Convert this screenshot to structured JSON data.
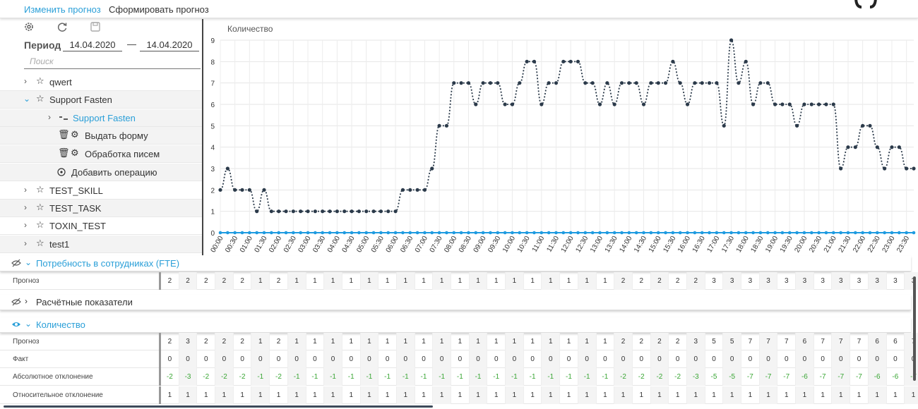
{
  "top_tabs": {
    "edit": "Изменить прогноз",
    "build": "Сформировать прогноз"
  },
  "left_panel": {
    "period_label": "Период",
    "date_from": "14.04.2020",
    "date_dash": "—",
    "date_to": "14.04.2020",
    "search_placeholder": "Поиск",
    "tree": [
      {
        "label": "qwert",
        "level": 0,
        "expanded": false
      },
      {
        "label": "Support Fasten",
        "level": 0,
        "expanded": true
      },
      {
        "label": "Support Fasten",
        "level": 1,
        "expanded": false
      },
      {
        "label": "Выдать форму",
        "level": 2
      },
      {
        "label": "Обработка писем",
        "level": 2
      },
      {
        "label": "Добавить операцию",
        "level": 2
      },
      {
        "label": "TEST_SKILL",
        "level": 0,
        "expanded": false
      },
      {
        "label": "TEST_TASK",
        "level": 0,
        "expanded": false
      },
      {
        "label": "TOXIN_TEST",
        "level": 0,
        "expanded": false
      },
      {
        "label": "test1",
        "level": 0,
        "expanded": false
      }
    ]
  },
  "chart_data": {
    "type": "line",
    "ylabel": "Количество",
    "ylim": [
      0,
      9
    ],
    "yticks": [
      "0",
      "1",
      "2",
      "3",
      "4",
      "5",
      "6",
      "7",
      "8",
      "9"
    ],
    "grid": true,
    "x": [
      "00:00",
      "00:15",
      "00:30",
      "00:45",
      "01:00",
      "01:15",
      "01:30",
      "01:45",
      "02:00",
      "02:15",
      "02:30",
      "02:45",
      "03:00",
      "03:15",
      "03:30",
      "03:45",
      "04:00",
      "04:15",
      "04:30",
      "04:45",
      "05:00",
      "05:15",
      "05:30",
      "05:45",
      "06:00",
      "06:15",
      "06:30",
      "06:45",
      "07:00",
      "07:15",
      "07:30",
      "07:45",
      "08:00",
      "08:15",
      "08:30",
      "08:45",
      "09:00",
      "09:15",
      "09:30",
      "09:45",
      "10:00",
      "10:15",
      "10:30",
      "10:45",
      "11:00",
      "11:15",
      "11:30",
      "11:45",
      "12:00",
      "12:15",
      "12:30",
      "12:45",
      "13:00",
      "13:15",
      "13:30",
      "13:45",
      "14:00",
      "14:15",
      "14:30",
      "14:45",
      "15:00",
      "15:15",
      "15:30",
      "15:45",
      "16:00",
      "16:15",
      "16:30",
      "16:45",
      "17:00",
      "17:15",
      "17:30",
      "17:45",
      "18:00",
      "18:15",
      "18:30",
      "18:45",
      "19:00",
      "19:15",
      "19:30",
      "19:45",
      "20:00",
      "20:15",
      "20:30",
      "20:45",
      "21:00",
      "21:15",
      "21:30",
      "21:45",
      "22:00",
      "22:15",
      "22:30",
      "22:45",
      "23:00",
      "23:15",
      "23:30",
      "23:45"
    ],
    "xticks": [
      "00:00",
      "00:30",
      "01:00",
      "01:30",
      "02:00",
      "02:30",
      "03:00",
      "03:30",
      "04:00",
      "04:30",
      "05:00",
      "05:30",
      "06:00",
      "06:30",
      "07:00",
      "07:30",
      "08:00",
      "08:30",
      "09:00",
      "09:30",
      "10:00",
      "10:30",
      "11:00",
      "11:30",
      "12:00",
      "12:30",
      "13:00",
      "13:30",
      "14:00",
      "14:30",
      "15:00",
      "15:30",
      "16:00",
      "16:30",
      "17:00",
      "17:30",
      "18:00",
      "18:30",
      "19:00",
      "19:30",
      "20:00",
      "20:30",
      "21:00",
      "21:30",
      "22:00",
      "22:30",
      "23:00",
      "23:30"
    ],
    "series": [
      {
        "color": "#2b3a4a",
        "style": "dotted",
        "values": [
          2,
          3,
          2,
          2,
          2,
          1,
          2,
          1,
          1,
          1,
          1,
          1,
          1,
          1,
          1,
          1,
          1,
          1,
          1,
          1,
          1,
          1,
          1,
          1,
          1,
          2,
          2,
          2,
          2,
          3,
          5,
          5,
          7,
          7,
          7,
          6,
          7,
          7,
          7,
          6,
          6,
          7,
          8,
          8,
          6,
          7,
          7,
          8,
          8,
          8,
          7,
          7,
          6,
          7,
          6,
          7,
          7,
          7,
          6,
          7,
          7,
          7,
          8,
          7,
          6,
          7,
          7,
          7,
          7,
          5,
          9,
          7,
          8,
          6,
          7,
          7,
          6,
          6,
          6,
          5,
          6,
          6,
          6,
          6,
          6,
          3,
          4,
          4,
          5,
          5,
          4,
          3,
          4,
          4,
          3,
          3
        ]
      },
      {
        "color": "#1e9be0",
        "style": "solid",
        "values": [
          0,
          0,
          0,
          0,
          0,
          0,
          0,
          0,
          0,
          0,
          0,
          0,
          0,
          0,
          0,
          0,
          0,
          0,
          0,
          0,
          0,
          0,
          0,
          0,
          0,
          0,
          0,
          0,
          0,
          0,
          0,
          0,
          0,
          0,
          0,
          0,
          0,
          0,
          0,
          0,
          0,
          0,
          0,
          0,
          0,
          0,
          0,
          0,
          0,
          0,
          0,
          0,
          0,
          0,
          0,
          0,
          0,
          0,
          0,
          0,
          0,
          0,
          0,
          0,
          0,
          0,
          0,
          0,
          0,
          0,
          0,
          0,
          0,
          0,
          0,
          0,
          0,
          0,
          0,
          0,
          0,
          0,
          0,
          0,
          0,
          0,
          0,
          0,
          0,
          0,
          0,
          0,
          0,
          0,
          0,
          0
        ]
      }
    ]
  },
  "sections": {
    "fte": {
      "title": "Потребность в сотрудниках (FTE)",
      "rows": [
        {
          "label": "Прогноз",
          "values": [
            "2",
            "2",
            "2",
            "2",
            "2",
            "1",
            "2",
            "1",
            "1",
            "1",
            "1",
            "1",
            "1",
            "1",
            "1",
            "1",
            "1",
            "1",
            "1",
            "1",
            "1",
            "1",
            "1",
            "1",
            "1",
            "2",
            "2",
            "2",
            "2",
            "2",
            "3",
            "3",
            "3",
            "3",
            "3",
            "3",
            "3",
            "3",
            "3",
            "3",
            "3",
            "3"
          ]
        }
      ]
    },
    "calc": {
      "title": "Расчётные показатели"
    },
    "qty": {
      "title": "Количество",
      "rows": [
        {
          "label": "Прогноз",
          "values": [
            "2",
            "3",
            "2",
            "2",
            "2",
            "1",
            "2",
            "1",
            "1",
            "1",
            "1",
            "1",
            "1",
            "1",
            "1",
            "1",
            "1",
            "1",
            "1",
            "1",
            "1",
            "1",
            "1",
            "1",
            "1",
            "2",
            "2",
            "2",
            "2",
            "3",
            "5",
            "5",
            "7",
            "7",
            "7",
            "6",
            "7",
            "7",
            "7",
            "6",
            "6",
            "7"
          ]
        },
        {
          "label": "Факт",
          "values": [
            "0",
            "0",
            "0",
            "0",
            "0",
            "0",
            "0",
            "0",
            "0",
            "0",
            "0",
            "0",
            "0",
            "0",
            "0",
            "0",
            "0",
            "0",
            "0",
            "0",
            "0",
            "0",
            "0",
            "0",
            "0",
            "0",
            "0",
            "0",
            "0",
            "0",
            "0",
            "0",
            "0",
            "0",
            "0",
            "0",
            "0",
            "0",
            "0",
            "0",
            "0",
            "0"
          ]
        },
        {
          "label": "Абсолютное отклонение",
          "values": [
            "-2",
            "-3",
            "-2",
            "-2",
            "-2",
            "-1",
            "-2",
            "-1",
            "-1",
            "-1",
            "-1",
            "-1",
            "-1",
            "-1",
            "-1",
            "-1",
            "-1",
            "-1",
            "-1",
            "-1",
            "-1",
            "-1",
            "-1",
            "-1",
            "-1",
            "-2",
            "-2",
            "-2",
            "-2",
            "-3",
            "-5",
            "-5",
            "-7",
            "-7",
            "-7",
            "-6",
            "-7",
            "-7",
            "-7",
            "-6",
            "-6",
            "-7"
          ],
          "color": "green"
        },
        {
          "label": "Относительное отклонение",
          "values": [
            "1",
            "1",
            "1",
            "1",
            "1",
            "1",
            "1",
            "1",
            "1",
            "1",
            "1",
            "1",
            "1",
            "1",
            "1",
            "1",
            "1",
            "1",
            "1",
            "1",
            "1",
            "1",
            "1",
            "1",
            "1",
            "1",
            "1",
            "1",
            "1",
            "1",
            "1",
            "1",
            "1",
            "1",
            "1",
            "1",
            "1",
            "1",
            "1",
            "1",
            "1",
            "1"
          ]
        }
      ]
    }
  },
  "icons": [
    "settings-gear-icon",
    "refresh-icon",
    "save-icon",
    "star-icon",
    "trash-icon",
    "gear-icon",
    "add-circle-icon",
    "hidden-eye-icon",
    "eye-icon",
    "chevron-right-icon",
    "chevron-down-icon",
    "branch-icon"
  ]
}
